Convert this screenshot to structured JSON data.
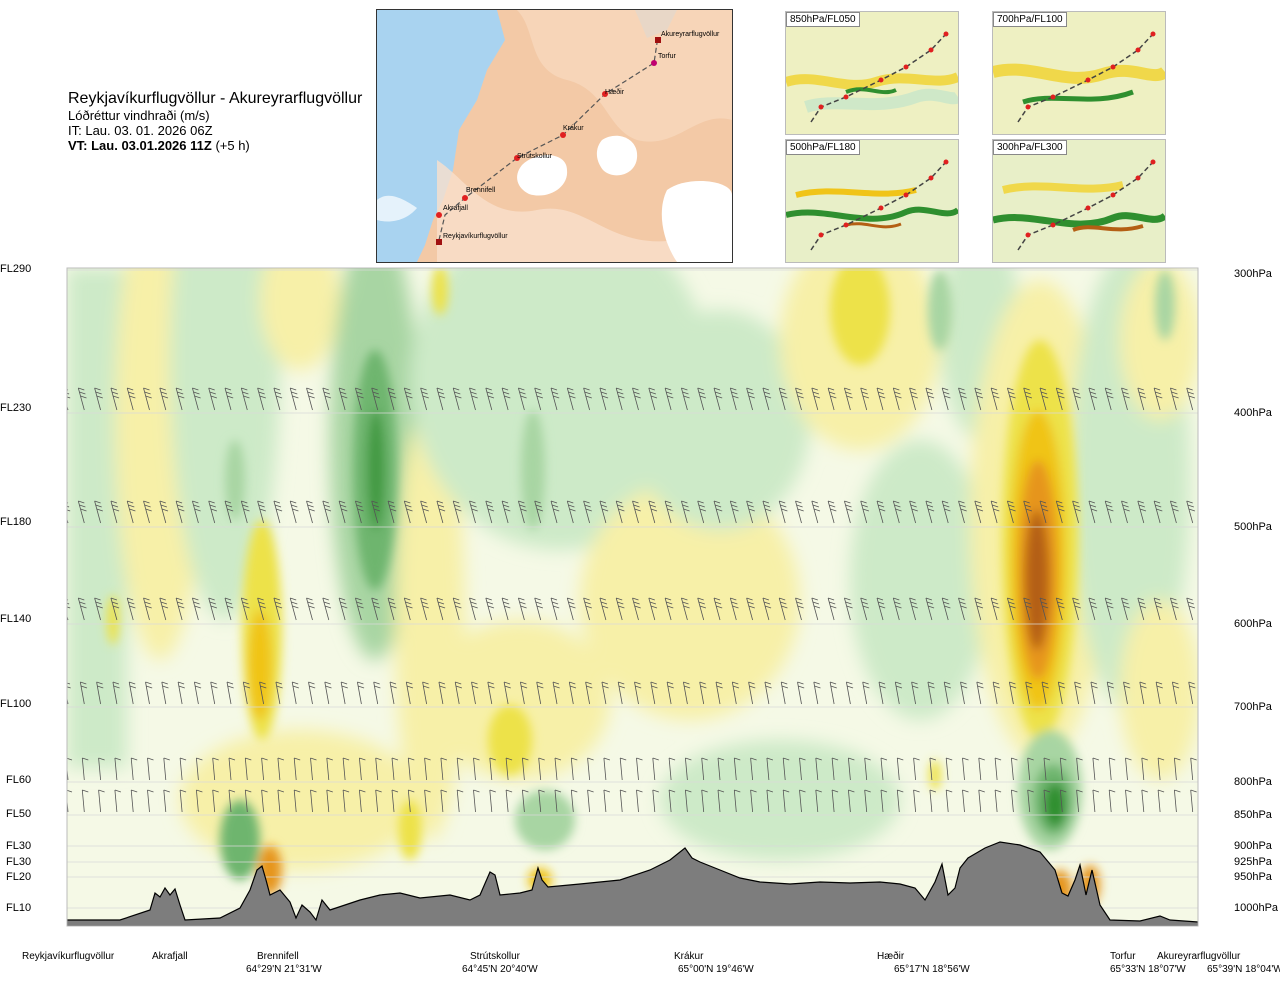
{
  "header": {
    "route": "Reykjavíkurflugvöllur - Akureyrarflugvöllur",
    "variable": "Lóðréttur vindhraði (m/s)",
    "issue_time": "IT: Lau. 03. 01. 2026 06Z",
    "valid_time": "VT: Lau. 03.01.2026 11Z",
    "valid_offset": "(+5 h)"
  },
  "map": {
    "points": [
      {
        "name": "Akureyrarflugvöllur"
      },
      {
        "name": "Torfur"
      },
      {
        "name": "Hæðir"
      },
      {
        "name": "Krákur"
      },
      {
        "name": "Strútskollur"
      },
      {
        "name": "Brennifell"
      },
      {
        "name": "Akrafjall"
      },
      {
        "name": "Reykjavíkurflugvöllur"
      }
    ]
  },
  "thumbnails": [
    {
      "label": "850hPa/FL050"
    },
    {
      "label": "700hPa/FL100"
    },
    {
      "label": "500hPa/FL180"
    },
    {
      "label": "300hPa/FL300"
    }
  ],
  "chart_data": {
    "type": "heatmap",
    "variable": "vertical wind speed (m/s)",
    "y_axis_left": {
      "ticks": [
        "FL290",
        "FL230",
        "FL180",
        "FL140",
        "FL100",
        "FL60",
        "FL50",
        "FL30",
        "FL30",
        "FL20",
        "FL10"
      ]
    },
    "y_axis_right": {
      "ticks": [
        "300hPa",
        "400hPa",
        "500hPa",
        "600hPa",
        "700hPa",
        "800hPa",
        "850hPa",
        "900hPa",
        "925hPa",
        "950hPa",
        "1000hPa"
      ]
    },
    "waypoints": [
      {
        "name": "Reykjavíkurflugvöllur",
        "coord": ""
      },
      {
        "name": "Akrafjall",
        "coord": ""
      },
      {
        "name": "Brennifell",
        "coord": "64°29'N 21°31'W"
      },
      {
        "name": "Strútskollur",
        "coord": "64°45'N 20°40'W"
      },
      {
        "name": "Krákur",
        "coord": "65°00'N 19°46'W"
      },
      {
        "name": "Hæðir",
        "coord": "65°17'N 18°56'W"
      },
      {
        "name": "Torfur",
        "coord": "65°33'N 18°07'W"
      },
      {
        "name": "Akureyrarflugvöllur",
        "coord": "65°39'N 18°04'W"
      }
    ],
    "colors": {
      "strong_down": "#2f8f2f",
      "down": "#6eb56e",
      "weak_down": "#a8d5a3",
      "slight_down": "#cdeac8",
      "neutral": "#f5f9e6",
      "slight_up": "#f7f0a8",
      "weak_up": "#ede24a",
      "up": "#f0c419",
      "strong_up": "#e6951c",
      "very_strong_up": "#b45f14",
      "terrain": "#7d7d7d",
      "grid": "#d9d9d9"
    }
  }
}
